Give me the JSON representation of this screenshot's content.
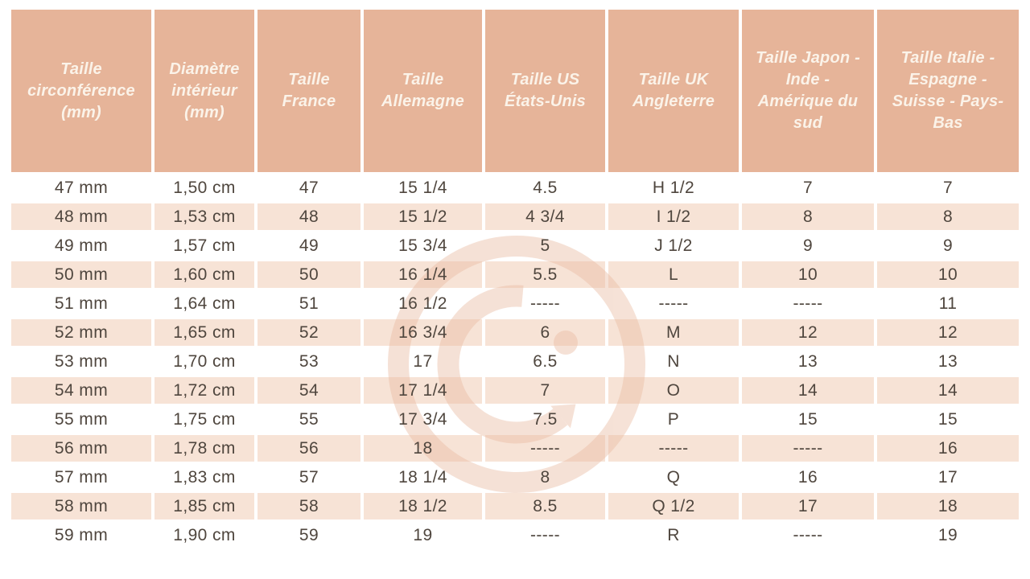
{
  "table": {
    "headers": [
      "Taille circonférence (mm)",
      "Diamètre intérieur (mm)",
      "Taille France",
      "Taille Allemagne",
      "Taille US États-Unis",
      "Taille UK Angleterre",
      "Taille Japon - Inde - Amérique du sud",
      "Taille Italie - Espagne - Suisse - Pays-Bas"
    ],
    "rows": [
      [
        "47 mm",
        "1,50 cm",
        "47",
        "15 1/4",
        "4.5",
        "H 1/2",
        "7",
        "7"
      ],
      [
        "48 mm",
        "1,53 cm",
        "48",
        "15 1/2",
        "4 3/4",
        "I 1/2",
        "8",
        "8"
      ],
      [
        "49 mm",
        "1,57 cm",
        "49",
        "15 3/4",
        "5",
        "J 1/2",
        "9",
        "9"
      ],
      [
        "50 mm",
        "1,60 cm",
        "50",
        "16 1/4",
        "5.5",
        "L",
        "10",
        "10"
      ],
      [
        "51 mm",
        "1,64 cm",
        "51",
        "16 1/2",
        "-----",
        "-----",
        "-----",
        "11"
      ],
      [
        "52 mm",
        "1,65 cm",
        "52",
        "16 3/4",
        "6",
        "M",
        "12",
        "12"
      ],
      [
        "53 mm",
        "1,70 cm",
        "53",
        "17",
        "6.5",
        "N",
        "13",
        "13"
      ],
      [
        "54 mm",
        "1,72 cm",
        "54",
        "17 1/4",
        "7",
        "O",
        "14",
        "14"
      ],
      [
        "55 mm",
        "1,75 cm",
        "55",
        "17 3/4",
        "7.5",
        "P",
        "15",
        "15"
      ],
      [
        "56 mm",
        "1,78 cm",
        "56",
        "18",
        "-----",
        "-----",
        "-----",
        "16"
      ],
      [
        "57 mm",
        "1,83 cm",
        "57",
        "18 1/4",
        "8",
        "Q",
        "16",
        "17"
      ],
      [
        "58 mm",
        "1,85 cm",
        "58",
        "18 1/2",
        "8.5",
        "Q 1/2",
        "17",
        "18"
      ],
      [
        "59 mm",
        "1,90 cm",
        "59",
        "19",
        "-----",
        "R",
        "-----",
        "19"
      ]
    ]
  },
  "colors": {
    "header_bg": "#E6B499",
    "header_text": "#FBF3E9",
    "stripe_bg": "#F7E3D6",
    "body_text": "#4F463E",
    "watermark": "#E9B9A0"
  },
  "watermark": {
    "icon": "g-ring-logo"
  }
}
